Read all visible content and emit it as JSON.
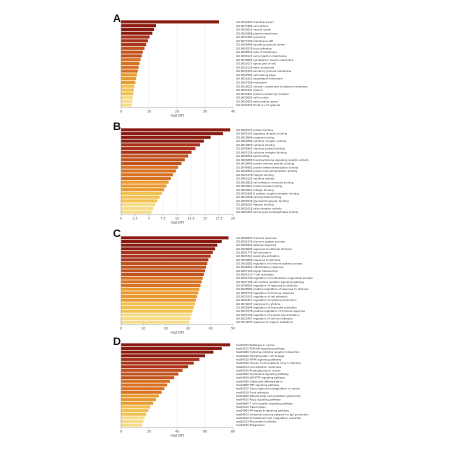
{
  "chart_data": [
    {
      "type": "bar",
      "orientation": "horizontal",
      "panel_label": "A",
      "xlabel": "-log10(P)",
      "xlim": [
        0,
        40
      ],
      "xticks": [
        0,
        10,
        20,
        30,
        40
      ],
      "colors": [
        "#8a1a10",
        "#a8331a",
        "#c0521e",
        "#d87222",
        "#e89a30",
        "#f2c04e",
        "#f6dc88"
      ],
      "categories": [
        "GO:0044425 membrane part",
        "GO:0031982 cell surface",
        "GO:0005615 vesicle lumen",
        "GO:0005886 plasma membrane",
        "GO:0031983 lysosome",
        "GO:0071556 membrane raft",
        "GO:0009986 secretory granule lumen",
        "GO:0005576 focal adhesion",
        "GO:0098552 side of membrane",
        "GO:0045121 cell projection membrane",
        "GO:0030665 cytoplasmic vesicle membrane",
        "GO:0030117 apical part of cell",
        "GO:0030139 early endosome",
        "GO:0031252 secretory granule membrane",
        "GO:0042581 cell leading edge",
        "GO:0016323 basolateral membrane",
        "GO:0005768 endosome",
        "GO:0016021 intrinsic component of plasma membrane",
        "GO:0001931 uropod",
        "GO:0032991 protein-containing complex",
        "GO:0030054 cell junction",
        "GO:0005925 extracellular space",
        "GO:0101002 ficolin-1-rich granule"
      ],
      "values": [
        35,
        12.5,
        11.8,
        11.2,
        10.2,
        9.6,
        9.0,
        8.4,
        7.8,
        7.4,
        7.0,
        6.6,
        6.3,
        6.0,
        5.7,
        5.4,
        5.1,
        4.8,
        4.6,
        4.4,
        4.2,
        4.0,
        3.8
      ]
    },
    {
      "type": "bar",
      "orientation": "horizontal",
      "panel_label": "B",
      "xlabel": "-log10(P)",
      "xlim": [
        0,
        20
      ],
      "xticks": [
        0,
        2.5,
        5,
        7.5,
        10,
        12.5,
        15,
        17.5,
        20
      ],
      "colors": [
        "#8a1a10",
        "#a8331a",
        "#c0521e",
        "#d87222",
        "#e89a30",
        "#f2c04e",
        "#f6dc88"
      ],
      "categories": [
        "GO:0005515 protein binding",
        "GO:0005102 signaling receptor binding",
        "GO:0019899 enzyme binding",
        "GO:0004896 cytokine receptor activity",
        "GO:0019955 cytokine binding",
        "GO:0042802 identical protein binding",
        "GO:0005126 cytokine receptor binding",
        "GO:0008289 lipid binding",
        "GO:0004888 transmembrane signaling receptor activity",
        "GO:0019904 protein domain specific binding",
        "GO:0046982 protein heterodimerization activity",
        "GO:0042803 protein homodimerization activity",
        "GO:0005178 integrin binding",
        "GO:0005125 cytokine activity",
        "GO:0050839 cell adhesion molecule binding",
        "GO:0019901 protein kinase binding",
        "GO:0003823 antigen binding",
        "GO:0001664 G protein-coupled receptor binding",
        "GO:0030246 carbohydrate binding",
        "GO:0005539 glycosaminoglycan binding",
        "GO:0008201 heparin binding",
        "GO:0001618 virus receptor activity",
        "GO:0004252 serine-type endopeptidase activity"
      ],
      "values": [
        19.5,
        18.2,
        16.0,
        14.8,
        14.1,
        13.3,
        12.6,
        12.0,
        11.4,
        10.8,
        10.2,
        9.8,
        9.3,
        8.9,
        8.5,
        8.1,
        7.7,
        7.3,
        6.9,
        6.5,
        6.1,
        5.8,
        5.5
      ]
    },
    {
      "type": "bar",
      "orientation": "horizontal",
      "panel_label": "C",
      "xlabel": "-log10(P)",
      "xlim": [
        0,
        50
      ],
      "xticks": [
        0,
        10,
        20,
        30,
        40,
        50
      ],
      "colors": [
        "#8a1a10",
        "#a8331a",
        "#c0521e",
        "#d87222",
        "#e89a30",
        "#f2c04e",
        "#f6dc88"
      ],
      "categories": [
        "GO:0006955 immune response",
        "GO:0002376 immune system process",
        "GO:0006952 defense response",
        "GO:0009605 response to external stimulus",
        "GO:0001775 cell activation",
        "GO:0045321 leukocyte activation",
        "GO:0050896 response to stimulus",
        "GO:0002682 regulation of immune system process",
        "GO:0006954 inflammatory response",
        "GO:0007165 signal transduction",
        "GO:0042110 T cell activation",
        "GO:0051239 regulation of multicellular organismal process",
        "GO:0007166 cell surface receptor signaling pathway",
        "GO:0048583 regulation of response to stimulus",
        "GO:0048584 positive regulation of response to stimulus",
        "GO:0050776 regulation of immune response",
        "GO:0030155 regulation of cell adhesion",
        "GO:0001817 regulation of cytokine production",
        "GO:0034097 response to cytokine",
        "GO:0002694 regulation of leukocyte activation",
        "GO:0050778 positive regulation of immune response",
        "GO:0051249 regulation of lymphocyte activation",
        "GO:0022407 regulation of cell-cell adhesion",
        "GO:0010033 response to organic substance"
      ],
      "values": [
        48,
        45,
        43,
        42,
        41,
        40,
        39,
        38.5,
        38,
        37.5,
        37,
        36.5,
        36,
        35.5,
        35,
        34.5,
        34,
        33.5,
        33,
        32.5,
        32,
        31.5,
        31,
        30.5
      ]
    },
    {
      "type": "bar",
      "orientation": "horizontal",
      "panel_label": "D",
      "xlabel": "-log10(P)",
      "xlim": [
        0,
        80
      ],
      "xticks": [
        0,
        20,
        40,
        60,
        80
      ],
      "colors": [
        "#8a1a10",
        "#a8331a",
        "#c0521e",
        "#d87222",
        "#e89a30",
        "#f2c04e",
        "#f6dc88"
      ],
      "categories": [
        "hsa05200 Pathways in cancer",
        "hsa04151 PI3K-Akt signaling pathway",
        "hsa04060 Cytokine-cytokine receptor interaction",
        "hsa04640 Hematopoietic cell lineage",
        "hsa04010 MAPK signaling pathway",
        "hsa05166 Human T-cell leukemia virus 1 infection",
        "hsa04514 Cell adhesion molecules",
        "hsa05205 Proteoglycans in cancer",
        "hsa04062 Chemokine signaling pathway",
        "hsa04630 JAK-STAT signaling pathway",
        "hsa04380 Osteoclast differentiation",
        "hsa04668 TNF signaling pathway",
        "hsa05202 Transcriptional misregulation in cancer",
        "hsa04510 Focal adhesion",
        "hsa04650 Natural killer cell mediated cytotoxicity",
        "hsa04015 Rap1 signaling pathway",
        "hsa04660 T cell receptor signaling pathway",
        "hsa05152 Tuberculosis",
        "hsa04064 NF-kappa B signaling pathway",
        "hsa04672 Intestinal immune network for IgA production",
        "hsa04610 Complement and coagulation cascades",
        "hsa05323 Rheumatoid arthritis",
        "hsa04145 Phagosome"
      ],
      "values": [
        78,
        72,
        66,
        60,
        56,
        52,
        48,
        44,
        41,
        38,
        35,
        33,
        31,
        29,
        27,
        25,
        23,
        21,
        19.5,
        18,
        17,
        16,
        15
      ]
    }
  ]
}
